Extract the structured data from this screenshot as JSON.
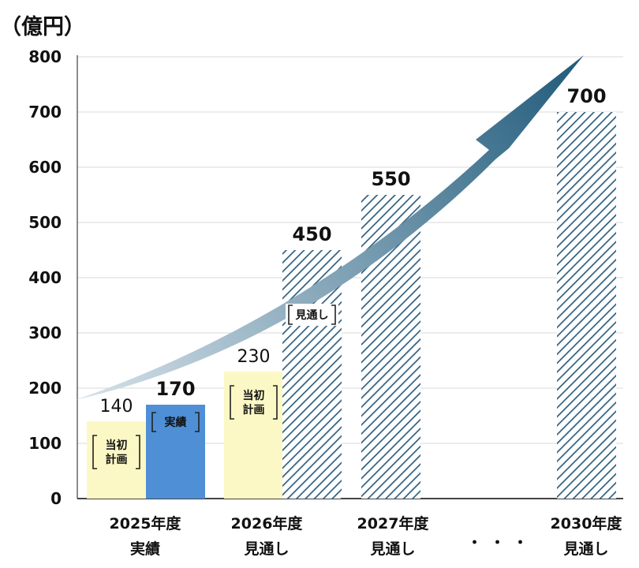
{
  "chart_data": {
    "type": "bar",
    "ylabel": "（億円）",
    "ylim": [
      0,
      800
    ],
    "yticks": [
      "0",
      "100",
      "200",
      "300",
      "400",
      "500",
      "600",
      "700",
      "800"
    ],
    "ellipsis": "・・・",
    "groups": [
      {
        "category_line1": "2025年度",
        "category_line2": "実績",
        "bars": [
          {
            "value": 140,
            "label": "140",
            "style": "plan",
            "tag": [
              "当初",
              "計画"
            ]
          },
          {
            "value": 170,
            "label": "170",
            "style": "actual",
            "tag": [
              "実績"
            ]
          }
        ]
      },
      {
        "category_line1": "2026年度",
        "category_line2": "見通し",
        "bars": [
          {
            "value": 230,
            "label": "230",
            "style": "plan",
            "tag": [
              "当初",
              "計画"
            ]
          },
          {
            "value": 450,
            "label": "450",
            "style": "forecast",
            "tag": [
              "見通し"
            ]
          }
        ]
      },
      {
        "category_line1": "2027年度",
        "category_line2": "見通し",
        "bars": [
          {
            "value": 550,
            "label": "550",
            "style": "forecast",
            "tag": []
          }
        ]
      },
      {
        "category_line1": "2030年度",
        "category_line2": "見通し",
        "bars": [
          {
            "value": 700,
            "label": "700",
            "style": "forecast",
            "tag": []
          }
        ]
      }
    ],
    "grid": true,
    "colors": {
      "plan": "#fbf8c5",
      "actual": "#4f8fd6",
      "forecast_stripe": "#2f5f80",
      "arrow_start": "#d6e2ea",
      "arrow_end": "#1f5a7a",
      "grid": "#d9d9d9",
      "axis": "#666666"
    }
  }
}
